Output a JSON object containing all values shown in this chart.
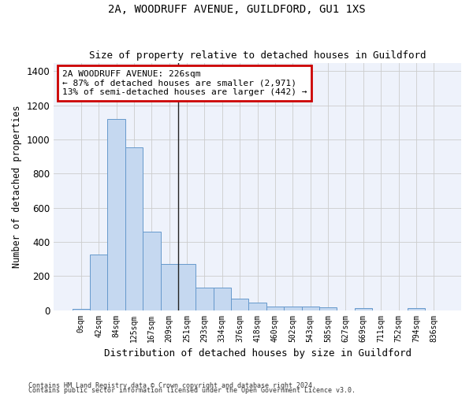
{
  "title": "2A, WOODRUFF AVENUE, GUILDFORD, GU1 1XS",
  "subtitle": "Size of property relative to detached houses in Guildford",
  "xlabel": "Distribution of detached houses by size in Guildford",
  "ylabel": "Number of detached properties",
  "bar_color": "#c5d8f0",
  "bar_edge_color": "#6699cc",
  "categories": [
    "0sqm",
    "42sqm",
    "84sqm",
    "125sqm",
    "167sqm",
    "209sqm",
    "251sqm",
    "293sqm",
    "334sqm",
    "376sqm",
    "418sqm",
    "460sqm",
    "502sqm",
    "543sqm",
    "585sqm",
    "627sqm",
    "669sqm",
    "711sqm",
    "752sqm",
    "794sqm",
    "836sqm"
  ],
  "values": [
    8,
    325,
    1120,
    955,
    460,
    270,
    270,
    130,
    130,
    68,
    45,
    22,
    22,
    22,
    18,
    0,
    12,
    0,
    0,
    12,
    0
  ],
  "ylim": [
    0,
    1450
  ],
  "yticks": [
    0,
    200,
    400,
    600,
    800,
    1000,
    1200,
    1400
  ],
  "annotation_text": "2A WOODRUFF AVENUE: 226sqm\n← 87% of detached houses are smaller (2,971)\n13% of semi-detached houses are larger (442) →",
  "annotation_box_color": "#ffffff",
  "annotation_box_edge_color": "#cc0000",
  "bg_color": "#eef2fb",
  "grid_color": "#cccccc",
  "footer_line1": "Contains HM Land Registry data © Crown copyright and database right 2024.",
  "footer_line2": "Contains public sector information licensed under the Open Government Licence v3.0."
}
